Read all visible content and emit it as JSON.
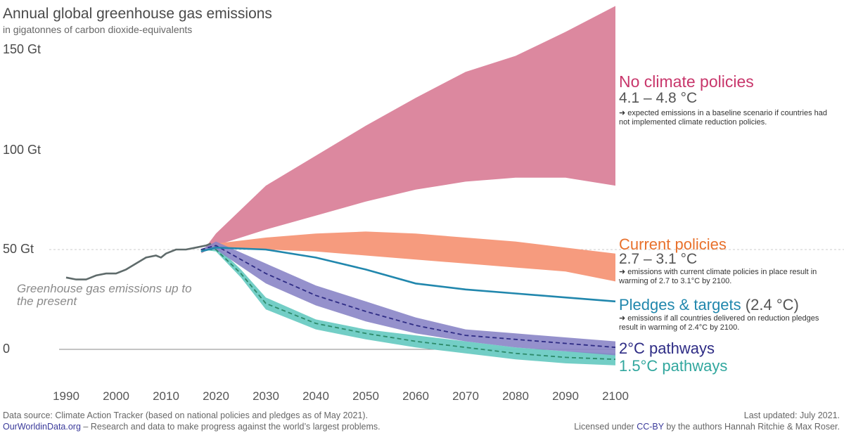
{
  "chart_data": {
    "type": "area",
    "title": "Annual global greenhouse gas emissions",
    "subtitle": "in gigatonnes of carbon dioxide-equivalents",
    "y_ticks": [
      "150 Gt",
      "100 Gt",
      "50 Gt",
      "0"
    ],
    "y_tick_values": [
      150,
      100,
      50,
      0
    ],
    "x_ticks": [
      "1990",
      "2000",
      "2010",
      "2020",
      "2030",
      "2040",
      "2050",
      "2060",
      "2070",
      "2080",
      "2090",
      "2100"
    ],
    "xlim": [
      1990,
      2100
    ],
    "ylim": [
      -10,
      160
    ],
    "historical": {
      "label": "Greenhouse gas emissions up to the present",
      "color": "#5f6b6b",
      "x": [
        1990,
        1992,
        1994,
        1996,
        1998,
        2000,
        2002,
        2004,
        2006,
        2008,
        2009,
        2010,
        2012,
        2014,
        2016,
        2018,
        2019
      ],
      "y": [
        36,
        35,
        35,
        37,
        38,
        38,
        40,
        43,
        46,
        47,
        46,
        48,
        50,
        50,
        51,
        52,
        53
      ]
    },
    "scenarios": [
      {
        "name": "No climate policies",
        "temp": "4.1 – 4.8 °C",
        "desc": "➜ expected emissions in a baseline scenario if countries had not implemented climate reduction policies.",
        "color": "#dc889f",
        "label_color": "#c8366b",
        "x": [
          2017,
          2020,
          2030,
          2040,
          2050,
          2060,
          2070,
          2080,
          2090,
          2100
        ],
        "upper": [
          48,
          58,
          82,
          97,
          112,
          126,
          139,
          147,
          159,
          172
        ],
        "lower": [
          48,
          52,
          60,
          67,
          74,
          80,
          84,
          86,
          86,
          82
        ]
      },
      {
        "name": "Current policies",
        "temp": "2.7 – 3.1 °C",
        "desc": "➜ emissions with current climate policies in place result in warming of 2.7 to 3.1°C by 2100.",
        "color": "#f69b7e",
        "label_color": "#e8712c",
        "x": [
          2017,
          2020,
          2030,
          2040,
          2050,
          2060,
          2070,
          2080,
          2090,
          2100
        ],
        "upper": [
          49,
          53,
          56,
          58,
          59,
          58,
          56,
          54,
          51,
          48
        ],
        "lower": [
          49,
          51,
          50,
          49,
          47,
          45,
          43,
          41,
          39,
          34
        ]
      },
      {
        "name": "Pledges & targets",
        "name_suffix": "(2.4 °C)",
        "desc": "➜ emissions if all countries delivered on reduction pledges result in warming of 2.4°C by 2100.",
        "color": "#2187ad",
        "label_color": "#2187ad",
        "x": [
          2017,
          2020,
          2030,
          2040,
          2050,
          2060,
          2070,
          2080,
          2090,
          2100
        ],
        "values": [
          49,
          51,
          50,
          46,
          40,
          33,
          30,
          28,
          26,
          24
        ]
      },
      {
        "name": "2°C pathways",
        "color": "#8a85c6",
        "line_color": "#2e2c85",
        "label_color": "#2e2c85",
        "x": [
          2017,
          2020,
          2030,
          2040,
          2050,
          2060,
          2070,
          2080,
          2090,
          2100
        ],
        "upper": [
          50,
          54,
          43,
          32,
          24,
          16,
          10,
          8,
          6,
          4
        ],
        "lower": [
          50,
          50,
          33,
          22,
          14,
          8,
          4,
          1,
          -1,
          -3
        ],
        "median": [
          50,
          52,
          38,
          27,
          19,
          12,
          7,
          5,
          3,
          1
        ]
      },
      {
        "name": "1.5°C pathways",
        "color": "#6ccbc3",
        "line_color": "#2d8a6a",
        "label_color": "#31a79e",
        "x": [
          2017,
          2020,
          2025,
          2030,
          2040,
          2050,
          2060,
          2070,
          2080,
          2090,
          2100
        ],
        "upper": [
          50,
          52,
          40,
          26,
          15,
          10,
          7,
          4,
          1,
          -1,
          -2
        ],
        "lower": [
          50,
          49,
          36,
          20,
          10,
          5,
          1,
          -2,
          -5,
          -7,
          -8
        ],
        "median": [
          50,
          50,
          38,
          23,
          13,
          8,
          4,
          1,
          -2,
          -4,
          -5
        ]
      }
    ]
  },
  "footer": {
    "source": "Data source: Climate Action Tracker (based on national policies and pledges as of May 2021).",
    "owid": "OurWorldinData.org",
    "owid_tagline": " – Research and data to make progress against the world’s largest problems.",
    "updated": "Last updated: July 2021.",
    "license_pre": "Licensed under ",
    "license_link": "CC-BY",
    "license_post": " by the authors Hannah Ritchie & Max Roser."
  }
}
